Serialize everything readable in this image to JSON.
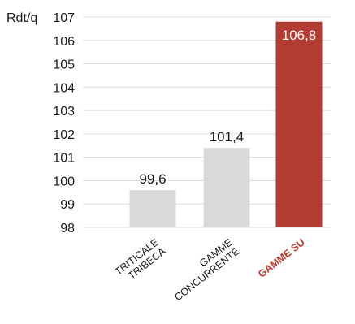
{
  "chart_data": {
    "type": "bar",
    "ylabel": "Rdt/q",
    "ylim": [
      98,
      107
    ],
    "yticks": [
      98,
      99,
      100,
      101,
      102,
      103,
      104,
      105,
      106,
      107
    ],
    "grid": "horizontal",
    "categories": [
      [
        "TRITICALE",
        "TRIBECA"
      ],
      [
        "GAMME",
        "CONCURRENTE"
      ],
      [
        "GAMME SU"
      ]
    ],
    "values": [
      99.6,
      101.4,
      106.8
    ],
    "data_labels": [
      "99,6",
      "101,4",
      "106,8"
    ],
    "colors": {
      "default_bar": "#d9d9d9",
      "highlight_bar": "#b23b32",
      "default_label": "#1a1a1a",
      "highlight_label_text": "#ffffff",
      "highlight_category": "#c0392b"
    },
    "highlight_index": 2
  }
}
